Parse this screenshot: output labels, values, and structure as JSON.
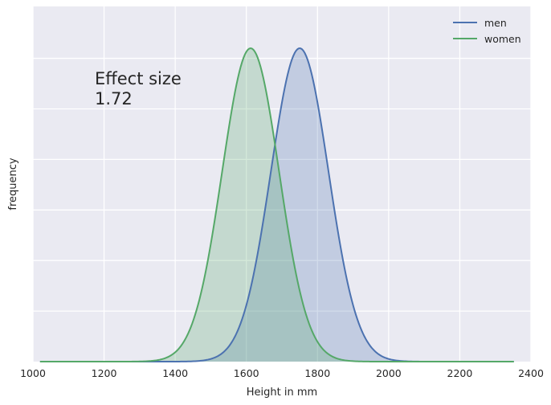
{
  "chart_data": {
    "type": "area",
    "title": "",
    "xlabel": "Height in mm",
    "ylabel": "frequency",
    "xlim": [
      1000,
      2400
    ],
    "x_ticks": [
      1000,
      1200,
      1400,
      1600,
      1800,
      2000,
      2200,
      2400
    ],
    "x_tick_labels": [
      "1000",
      "1200",
      "1400",
      "1600",
      "1800",
      "2000",
      "2200",
      "2400"
    ],
    "y_tick_labels_visible": false,
    "grid": true,
    "legend_position": "top-right",
    "x_range": [
      1020,
      2355
    ],
    "series": [
      {
        "name": "men",
        "distribution": "normal",
        "mean": 1750,
        "sd": 81,
        "color": "#4c72b0",
        "fill_color": "#4c72b0",
        "fill_opacity": 0.25
      },
      {
        "name": "women",
        "distribution": "normal",
        "mean": 1612,
        "sd": 80,
        "color": "#55a868",
        "fill_color": "#55a868",
        "fill_opacity": 0.25
      }
    ],
    "annotations": [
      {
        "line1": "Effect size",
        "line2": "1.72"
      }
    ]
  },
  "colors": {
    "plot_background": "#eaeaf2",
    "grid": "#ffffff",
    "text": "#262626"
  }
}
